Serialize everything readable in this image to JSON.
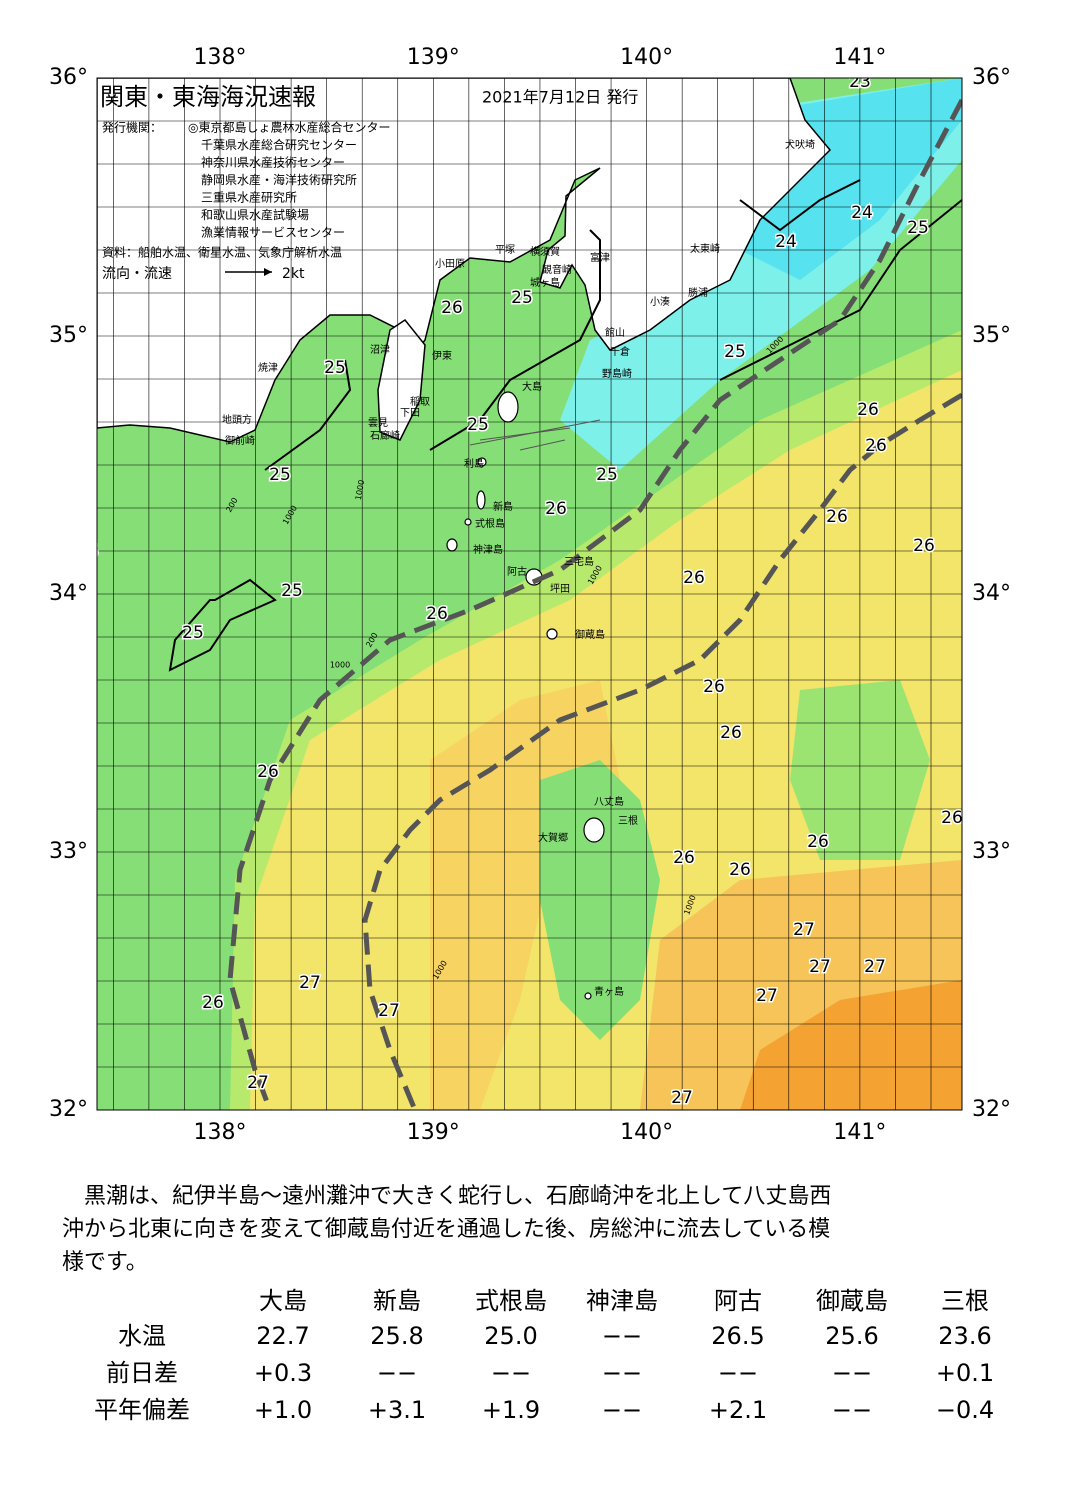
{
  "header": {
    "title": "関東・東海海況速報",
    "date": "2021年7月12日 発行",
    "issuer_label": "発行機関：",
    "issuers": [
      "◎東京都島しょ農林水産総合センター",
      "千葉県水産総合研究センター",
      "神奈川県水産技術センター",
      "静岡県水産・海洋技術研究所",
      "三重県水産研究所",
      "和歌山県水産試験場",
      "漁業情報サービスセンター"
    ],
    "source": "資料：船舶水温、衛星水温、気象庁解析水温",
    "legend_label": "流向・流速",
    "legend_speed": "2kt"
  },
  "map": {
    "lon_labels": [
      "138°",
      "139°",
      "140°",
      "141°"
    ],
    "lat_labels": [
      "36°",
      "35°",
      "34°",
      "33°",
      "32°"
    ],
    "temperature_labels": [
      23,
      24,
      24,
      25,
      25,
      26,
      25,
      25,
      26,
      26,
      25,
      25,
      25,
      26,
      26,
      26,
      25,
      26,
      25,
      25,
      26,
      26,
      26,
      26,
      26,
      26,
      26,
      26,
      27,
      27,
      27,
      27,
      27,
      26,
      27,
      27,
      27
    ],
    "place_names": [
      "犬吠埼",
      "太東崎",
      "勝浦",
      "小湊",
      "館山",
      "千倉",
      "野島崎",
      "富津",
      "観音崎",
      "横須賀",
      "城ヶ島",
      "平塚",
      "小田原",
      "沼津",
      "伊東",
      "焼津",
      "稲取",
      "下田",
      "雲見",
      "石廊崎",
      "地頭方",
      "御前崎",
      "大島",
      "利島",
      "新島",
      "式根島",
      "神津島",
      "三宅島",
      "阿古",
      "坪田",
      "御蔵島",
      "八丈島",
      "三根",
      "大賀郷",
      "青ヶ島"
    ],
    "depth_labels": [
      "1000",
      "200",
      "1000",
      "200",
      "1000",
      "1000",
      "1000",
      "1000",
      "1000"
    ]
  },
  "summary": {
    "lines": [
      "黒潮は、紀伊半島～遠州灘沖で大きく蛇行し、石廊崎沖を北上して八丈島西",
      "沖から北東に向きを変えて御蔵島付近を通過した後、房総沖に流去している模",
      "様です。"
    ]
  },
  "table": {
    "columns": [
      "大島",
      "新島",
      "式根島",
      "神津島",
      "阿古",
      "御蔵島",
      "三根"
    ],
    "rows": [
      {
        "label": "水温",
        "cells": [
          "22.7",
          "25.8",
          "25.0",
          "−−",
          "26.5",
          "25.6",
          "23.6"
        ]
      },
      {
        "label": "前日差",
        "cells": [
          "+0.3",
          "−−",
          "−−",
          "−−",
          "−−",
          "−−",
          "+0.1"
        ]
      },
      {
        "label": "平年偏差",
        "cells": [
          "+1.0",
          "+3.1",
          "+1.9",
          "−−",
          "+2.1",
          "−−",
          "−0.4"
        ]
      }
    ]
  }
}
